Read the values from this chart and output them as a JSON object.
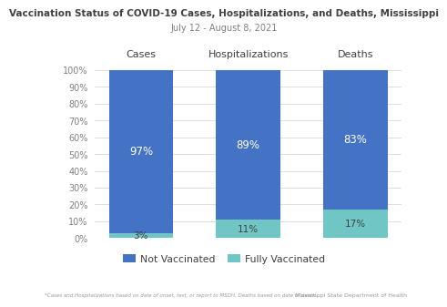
{
  "title": "Vaccination Status of COVID-19 Cases, Hospitalizations, and Deaths, Mississippi",
  "subtitle": "July 12 - August 8, 2021",
  "categories": [
    "Cases",
    "Hospitalizations",
    "Deaths"
  ],
  "not_vaccinated": [
    97,
    89,
    83
  ],
  "fully_vaccinated": [
    3,
    11,
    17
  ],
  "not_vaccinated_color": "#4472C4",
  "fully_vaccinated_color": "#70C5C5",
  "background_color": "#FFFFFF",
  "ylabel_color": "#808080",
  "title_color": "#404040",
  "subtitle_color": "#808080",
  "footnote_left": "*Cases and Hospitalizations based on date of onset, test, or report to MSDH. Deaths based on date of death.",
  "footnote_right": "Mississippi State Department of Health",
  "legend_not_vaccinated": "Not Vaccinated",
  "legend_fully_vaccinated": "Fully Vaccinated",
  "ytick_labels": [
    "0%",
    "10%",
    "20%",
    "30%",
    "40%",
    "50%",
    "60%",
    "70%",
    "80%",
    "90%",
    "100%"
  ]
}
